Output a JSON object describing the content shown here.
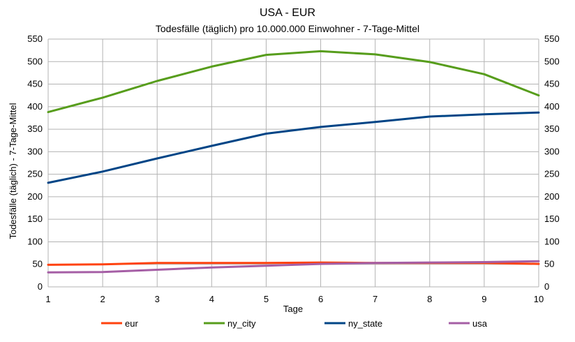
{
  "chart_data": {
    "type": "line",
    "title": "USA - EUR",
    "subtitle": "Todesfälle (täglich) pro 10.000.000 Einwohner - 7-Tage-Mittel",
    "xlabel": "Tage",
    "ylabel": "Todesfälle (täglich) - 7-Tage-Mittel",
    "x": [
      1,
      2,
      3,
      4,
      5,
      6,
      7,
      8,
      9,
      10
    ],
    "xlim": [
      1,
      10
    ],
    "ylim": [
      0,
      550
    ],
    "yticks": [
      0,
      50,
      100,
      150,
      200,
      250,
      300,
      350,
      400,
      450,
      500,
      550
    ],
    "grid": true,
    "secondary_y_axis": true,
    "legend_position": "bottom",
    "series": [
      {
        "name": "eur",
        "color": "#ff420e",
        "values": [
          49,
          50,
          53,
          53,
          53,
          54,
          53,
          53,
          53,
          51
        ]
      },
      {
        "name": "ny_city",
        "color": "#579d1c",
        "values": [
          388,
          420,
          457,
          489,
          515,
          523,
          516,
          499,
          472,
          425
        ]
      },
      {
        "name": "ny_state",
        "color": "#004586",
        "values": [
          231,
          256,
          285,
          313,
          340,
          355,
          366,
          378,
          383,
          387
        ]
      },
      {
        "name": "usa",
        "color": "#a55ea5",
        "values": [
          32,
          33,
          38,
          43,
          47,
          51,
          53,
          54,
          55,
          57
        ]
      }
    ]
  }
}
